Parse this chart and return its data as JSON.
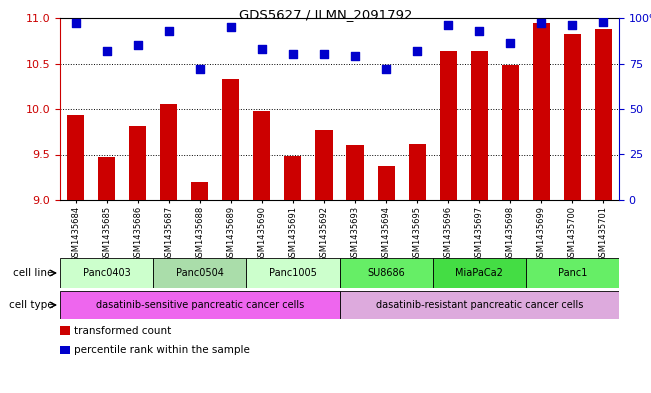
{
  "title": "GDS5627 / ILMN_2091792",
  "samples": [
    "GSM1435684",
    "GSM1435685",
    "GSM1435686",
    "GSM1435687",
    "GSM1435688",
    "GSM1435689",
    "GSM1435690",
    "GSM1435691",
    "GSM1435692",
    "GSM1435693",
    "GSM1435694",
    "GSM1435695",
    "GSM1435696",
    "GSM1435697",
    "GSM1435698",
    "GSM1435699",
    "GSM1435700",
    "GSM1435701"
  ],
  "bar_values": [
    9.93,
    9.47,
    9.81,
    10.05,
    9.2,
    10.33,
    9.98,
    9.48,
    9.77,
    9.6,
    9.37,
    9.62,
    10.64,
    10.64,
    10.48,
    10.94,
    10.82,
    10.88
  ],
  "dot_values": [
    97,
    82,
    85,
    93,
    72,
    95,
    83,
    80,
    80,
    79,
    72,
    82,
    96,
    93,
    86,
    97,
    96,
    98
  ],
  "bar_color": "#cc0000",
  "dot_color": "#0000cc",
  "ylim_left": [
    9,
    11
  ],
  "ylim_right": [
    0,
    100
  ],
  "yticks_left": [
    9,
    9.5,
    10,
    10.5,
    11
  ],
  "yticks_right": [
    0,
    25,
    50,
    75,
    100
  ],
  "ytick_labels_right": [
    "0",
    "25",
    "50",
    "75",
    "100%"
  ],
  "cell_lines": [
    {
      "label": "Panc0403",
      "start": 0,
      "end": 3,
      "color": "#ccffcc"
    },
    {
      "label": "Panc0504",
      "start": 3,
      "end": 6,
      "color": "#aaddaa"
    },
    {
      "label": "Panc1005",
      "start": 6,
      "end": 9,
      "color": "#ccffcc"
    },
    {
      "label": "SU8686",
      "start": 9,
      "end": 12,
      "color": "#66ee66"
    },
    {
      "label": "MiaPaCa2",
      "start": 12,
      "end": 15,
      "color": "#44dd44"
    },
    {
      "label": "Panc1",
      "start": 15,
      "end": 18,
      "color": "#66ee66"
    }
  ],
  "cell_type_groups": [
    {
      "label": "dasatinib-sensitive pancreatic cancer cells",
      "start": 0,
      "end": 9,
      "color": "#ee66ee"
    },
    {
      "label": "dasatinib-resistant pancreatic cancer cells",
      "start": 9,
      "end": 18,
      "color": "#ddaadd"
    }
  ],
  "legend_items": [
    {
      "color": "#cc0000",
      "label": "transformed count"
    },
    {
      "color": "#0000cc",
      "label": "percentile rank within the sample"
    }
  ],
  "cell_line_label": "cell line",
  "cell_type_label": "cell type",
  "tick_label_color_left": "#cc0000",
  "tick_label_color_right": "#0000cc",
  "bar_width": 0.55,
  "dot_size": 28
}
